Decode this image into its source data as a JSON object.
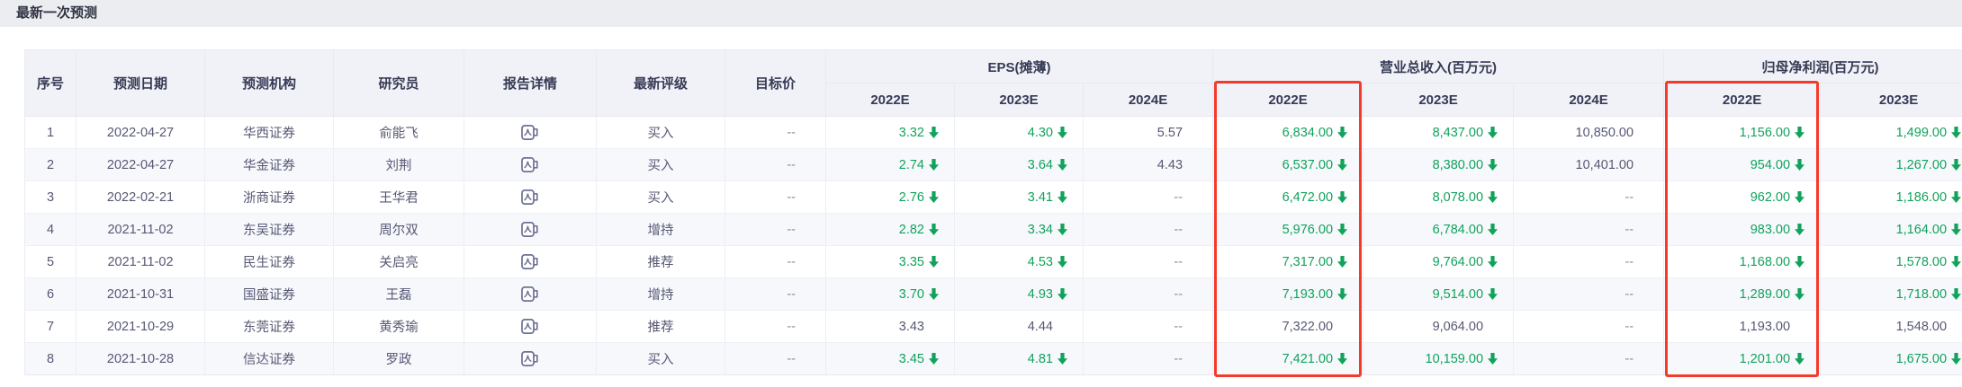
{
  "page_title": "最新一次预测",
  "colors": {
    "green_value": "#11a25c",
    "highlight_red": "#f43b2b",
    "header_bg": "#f1f2f8",
    "even_row_bg": "#f7f8fc",
    "icon_gray": "#6e7092"
  },
  "table": {
    "simple_columns": [
      {
        "key": "seq",
        "label": "序号"
      },
      {
        "key": "date",
        "label": "预测日期"
      },
      {
        "key": "org",
        "label": "预测机构"
      },
      {
        "key": "researcher",
        "label": "研究员"
      },
      {
        "key": "report",
        "label": "报告详情"
      },
      {
        "key": "rating",
        "label": "最新评级"
      },
      {
        "key": "target",
        "label": "目标价"
      }
    ],
    "groups": [
      {
        "key": "eps",
        "label": "EPS(摊薄)",
        "years": [
          "2022E",
          "2023E",
          "2024E"
        ]
      },
      {
        "key": "revenue",
        "label": "营业总收入(百万元)",
        "years": [
          "2022E",
          "2023E",
          "2024E"
        ]
      },
      {
        "key": "profit",
        "label": "归母净利润(百万元)",
        "years": [
          "2022E",
          "2023E"
        ]
      }
    ],
    "highlighted_columns": [
      {
        "group": "revenue",
        "year": "2022E"
      },
      {
        "group": "profit",
        "year": "2022E"
      }
    ],
    "report_icon": "pdf-report-icon",
    "empty_placeholder": "--",
    "rows": [
      {
        "seq": "1",
        "date": "2022-04-27",
        "org": "华西证券",
        "researcher": "俞能飞",
        "rating": "买入",
        "target": "--",
        "eps": [
          {
            "v": "3.32",
            "down": true
          },
          {
            "v": "4.30",
            "down": true
          },
          {
            "v": "5.57",
            "down": false
          }
        ],
        "revenue": [
          {
            "v": "6,834.00",
            "down": true
          },
          {
            "v": "8,437.00",
            "down": true
          },
          {
            "v": "10,850.00",
            "down": false
          }
        ],
        "profit": [
          {
            "v": "1,156.00",
            "down": true
          },
          {
            "v": "1,499.00",
            "down": true
          }
        ]
      },
      {
        "seq": "2",
        "date": "2022-04-27",
        "org": "华金证券",
        "researcher": "刘荆",
        "rating": "买入",
        "target": "--",
        "eps": [
          {
            "v": "2.74",
            "down": true
          },
          {
            "v": "3.64",
            "down": true
          },
          {
            "v": "4.43",
            "down": false
          }
        ],
        "revenue": [
          {
            "v": "6,537.00",
            "down": true
          },
          {
            "v": "8,380.00",
            "down": true
          },
          {
            "v": "10,401.00",
            "down": false
          }
        ],
        "profit": [
          {
            "v": "954.00",
            "down": true
          },
          {
            "v": "1,267.00",
            "down": true
          }
        ]
      },
      {
        "seq": "3",
        "date": "2022-02-21",
        "org": "浙商证券",
        "researcher": "王华君",
        "rating": "买入",
        "target": "--",
        "eps": [
          {
            "v": "2.76",
            "down": true
          },
          {
            "v": "3.41",
            "down": true
          },
          {
            "v": "--",
            "down": false
          }
        ],
        "revenue": [
          {
            "v": "6,472.00",
            "down": true
          },
          {
            "v": "8,078.00",
            "down": true
          },
          {
            "v": "--",
            "down": false
          }
        ],
        "profit": [
          {
            "v": "962.00",
            "down": true
          },
          {
            "v": "1,186.00",
            "down": true
          }
        ]
      },
      {
        "seq": "4",
        "date": "2021-11-02",
        "org": "东吴证券",
        "researcher": "周尔双",
        "rating": "增持",
        "target": "--",
        "eps": [
          {
            "v": "2.82",
            "down": true
          },
          {
            "v": "3.34",
            "down": true
          },
          {
            "v": "--",
            "down": false
          }
        ],
        "revenue": [
          {
            "v": "5,976.00",
            "down": true
          },
          {
            "v": "6,784.00",
            "down": true
          },
          {
            "v": "--",
            "down": false
          }
        ],
        "profit": [
          {
            "v": "983.00",
            "down": true
          },
          {
            "v": "1,164.00",
            "down": true
          }
        ]
      },
      {
        "seq": "5",
        "date": "2021-11-02",
        "org": "民生证券",
        "researcher": "关启亮",
        "rating": "推荐",
        "target": "--",
        "eps": [
          {
            "v": "3.35",
            "down": true
          },
          {
            "v": "4.53",
            "down": true
          },
          {
            "v": "--",
            "down": false
          }
        ],
        "revenue": [
          {
            "v": "7,317.00",
            "down": true
          },
          {
            "v": "9,764.00",
            "down": true
          },
          {
            "v": "--",
            "down": false
          }
        ],
        "profit": [
          {
            "v": "1,168.00",
            "down": true
          },
          {
            "v": "1,578.00",
            "down": true
          }
        ]
      },
      {
        "seq": "6",
        "date": "2021-10-31",
        "org": "国盛证券",
        "researcher": "王磊",
        "rating": "增持",
        "target": "--",
        "eps": [
          {
            "v": "3.70",
            "down": true
          },
          {
            "v": "4.93",
            "down": true
          },
          {
            "v": "--",
            "down": false
          }
        ],
        "revenue": [
          {
            "v": "7,193.00",
            "down": true
          },
          {
            "v": "9,514.00",
            "down": true
          },
          {
            "v": "--",
            "down": false
          }
        ],
        "profit": [
          {
            "v": "1,289.00",
            "down": true
          },
          {
            "v": "1,718.00",
            "down": true
          }
        ]
      },
      {
        "seq": "7",
        "date": "2021-10-29",
        "org": "东莞证券",
        "researcher": "黄秀瑜",
        "rating": "推荐",
        "target": "--",
        "eps": [
          {
            "v": "3.43",
            "down": false
          },
          {
            "v": "4.44",
            "down": false
          },
          {
            "v": "--",
            "down": false
          }
        ],
        "revenue": [
          {
            "v": "7,322.00",
            "down": false
          },
          {
            "v": "9,064.00",
            "down": false
          },
          {
            "v": "--",
            "down": false
          }
        ],
        "profit": [
          {
            "v": "1,193.00",
            "down": false
          },
          {
            "v": "1,548.00",
            "down": false
          }
        ]
      },
      {
        "seq": "8",
        "date": "2021-10-28",
        "org": "信达证券",
        "researcher": "罗政",
        "rating": "买入",
        "target": "--",
        "eps": [
          {
            "v": "3.45",
            "down": true
          },
          {
            "v": "4.81",
            "down": true
          },
          {
            "v": "--",
            "down": false
          }
        ],
        "revenue": [
          {
            "v": "7,421.00",
            "down": true
          },
          {
            "v": "10,159.00",
            "down": true
          },
          {
            "v": "--",
            "down": false
          }
        ],
        "profit": [
          {
            "v": "1,201.00",
            "down": true
          },
          {
            "v": "1,675.00",
            "down": true
          }
        ]
      }
    ]
  }
}
